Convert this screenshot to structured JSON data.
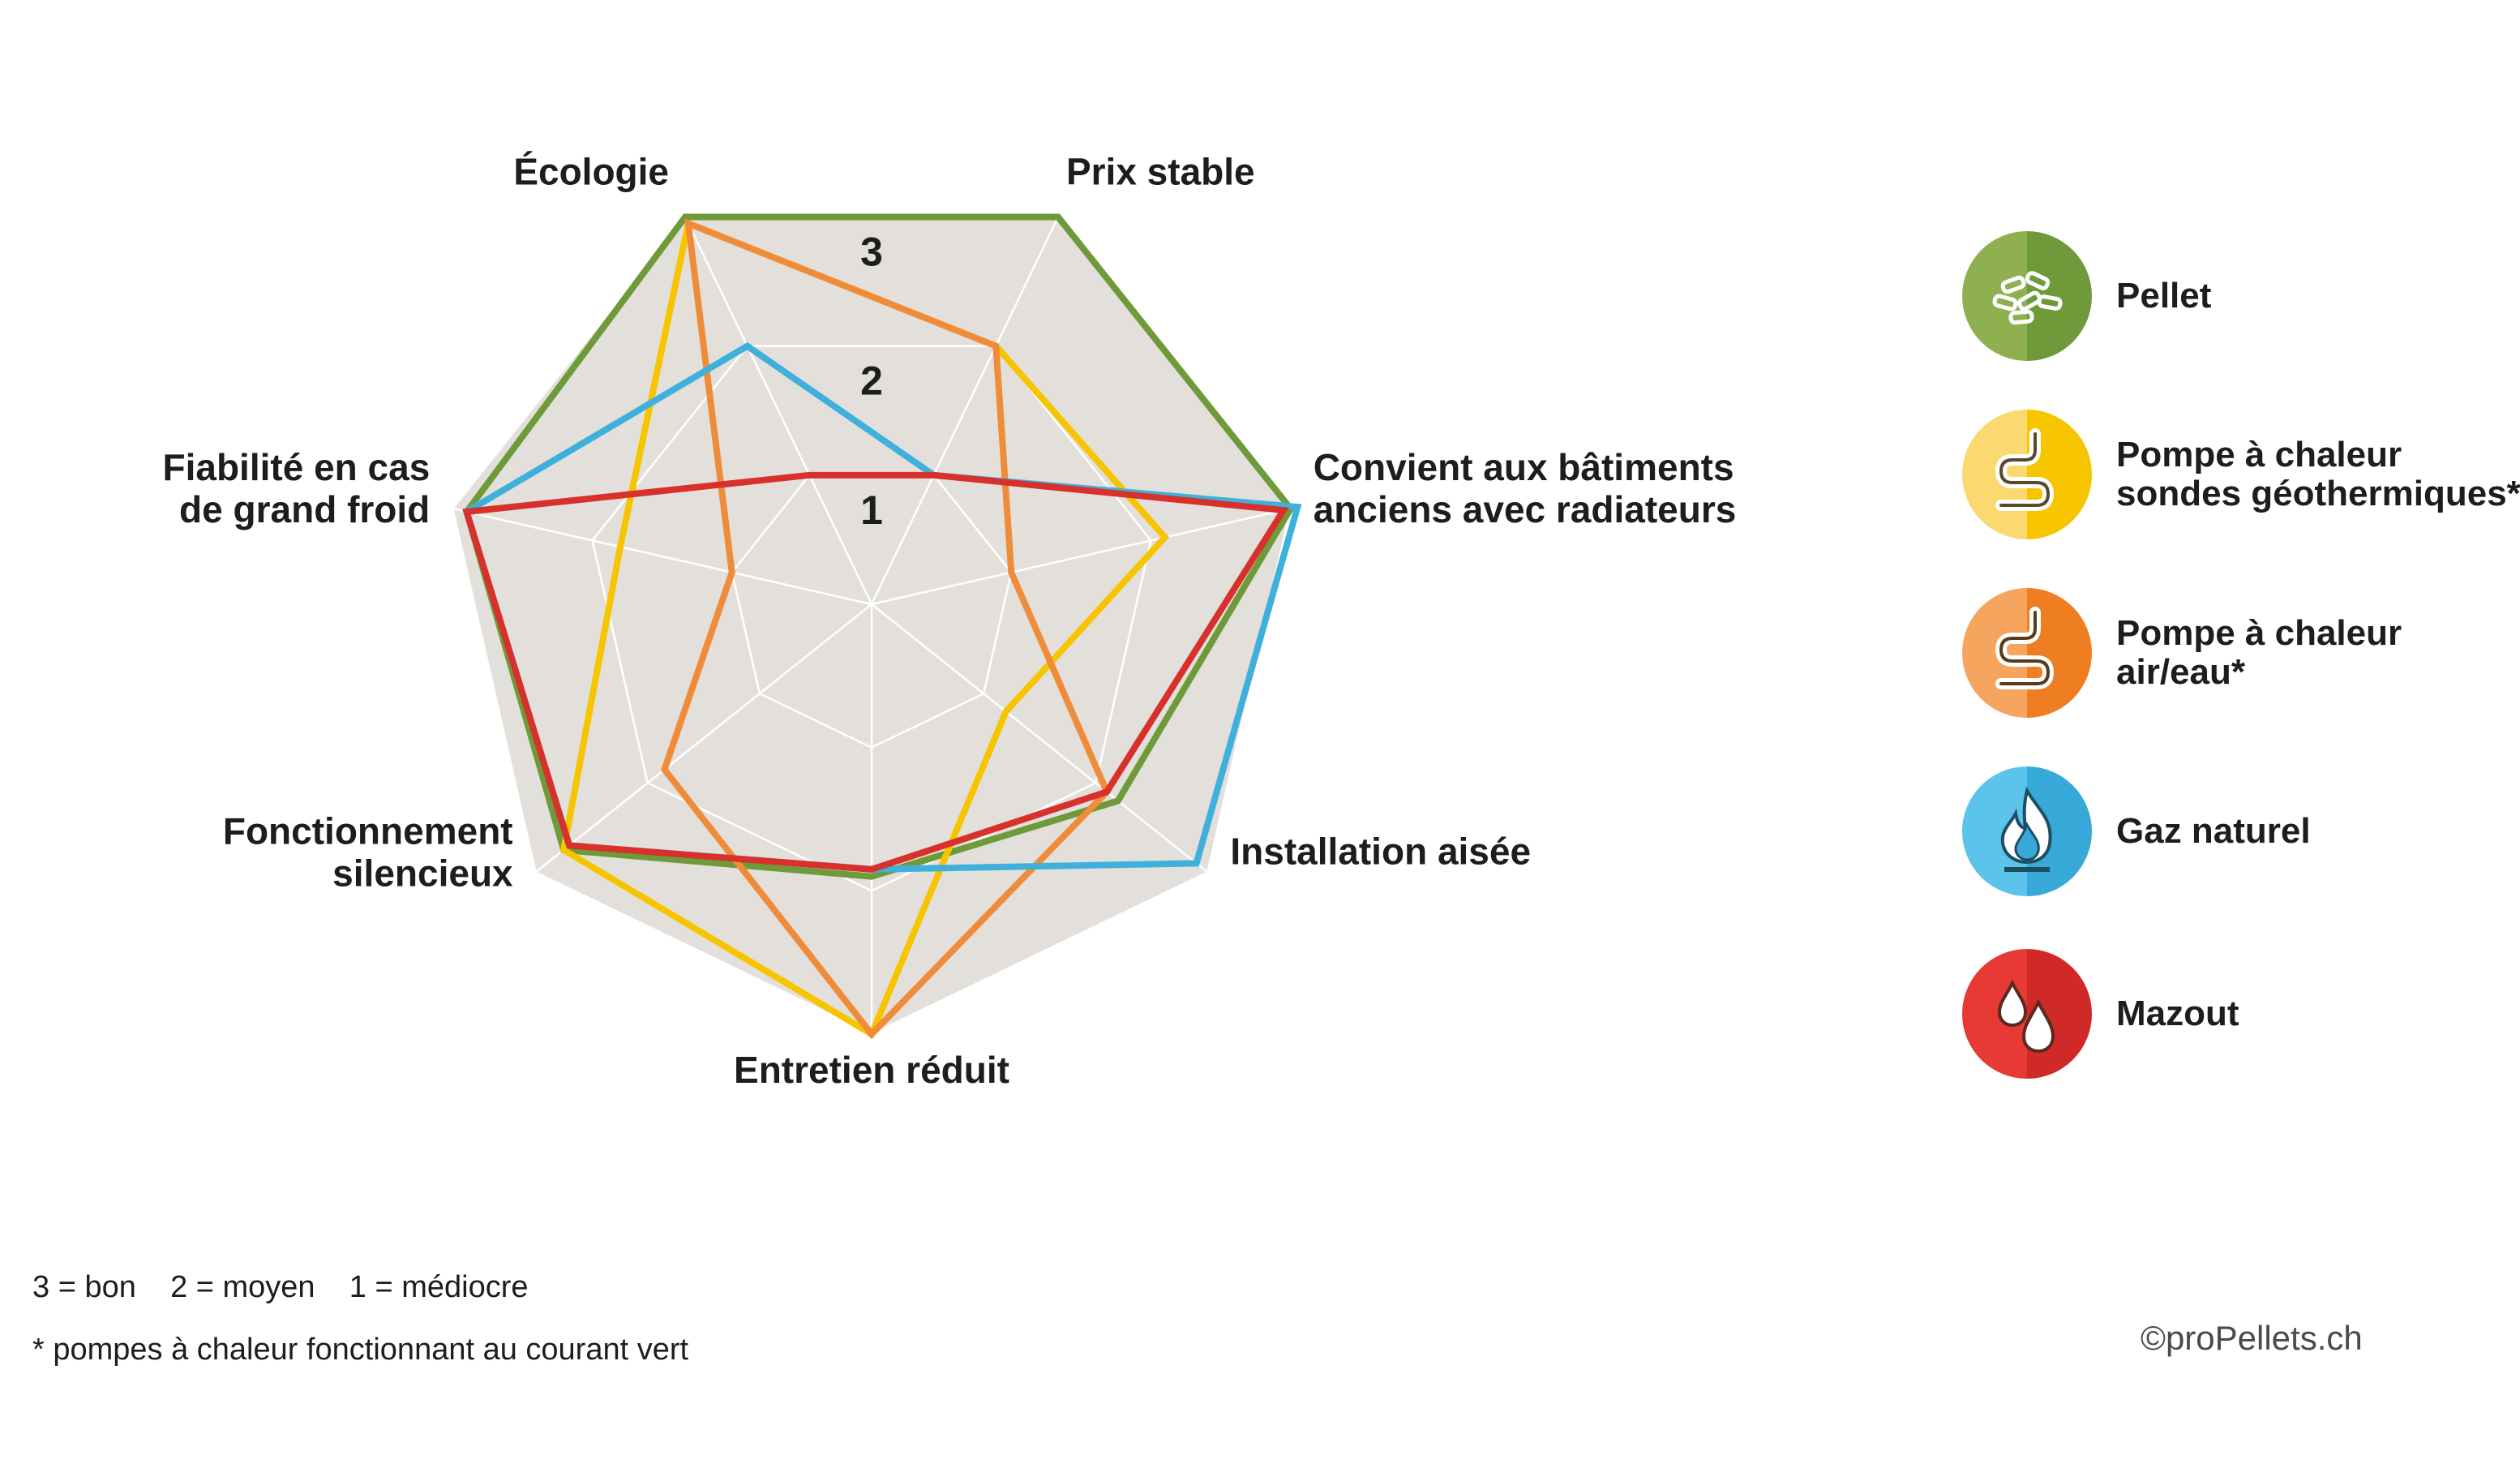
{
  "chart_data": {
    "type": "radar",
    "title": "",
    "axes": [
      "Écologie",
      "Prix stable",
      "Convient aux bâtiments\nanciens avec radiateurs",
      "Installation aisée",
      "Entretien réduit",
      "Fonctionnement\nsilencieux",
      "Fiabilité en cas\nde grand froid"
    ],
    "ring_labels": [
      "1",
      "2",
      "3"
    ],
    "range": [
      0,
      3
    ],
    "grid": true,
    "legend_position": "right",
    "series": [
      {
        "name": "Pellet",
        "color": "#6e9a3a",
        "values": [
          3,
          3,
          3,
          2.2,
          1.9,
          2.75,
          2.9
        ]
      },
      {
        "name": "Pompe à chaleur\nsondes géothermiques*",
        "color": "#f7c400",
        "values": [
          2.95,
          2,
          2.1,
          1.2,
          3,
          2.75,
          1.8
        ]
      },
      {
        "name": "Pompe à chaleur\nair/eau*",
        "color": "#ef8c3a",
        "values": [
          2.95,
          2,
          1.0,
          2.1,
          3,
          1.85,
          1.0
        ]
      },
      {
        "name": "Gaz naturel",
        "color": "#3fb0dc",
        "values": [
          2,
          1,
          3.05,
          2.9,
          1.85,
          2.7,
          2.9
        ]
      },
      {
        "name": "Mazout",
        "color": "#d8302b",
        "values": [
          1,
          1,
          2.95,
          2.1,
          1.85,
          2.7,
          2.9
        ]
      }
    ]
  },
  "legend": {
    "items": [
      {
        "label": "Pellet",
        "icon": "pellets-icon",
        "color_light": "#8fb050",
        "color_dark": "#6e9a3a"
      },
      {
        "label": "Pompe à chaleur\nsondes géothermiques*",
        "icon": "heat-pump-coil-icon",
        "color_light": "#fbd870",
        "color_dark": "#f7c400"
      },
      {
        "label": "Pompe à chaleur\nair/eau*",
        "icon": "heat-pump-coil-icon",
        "color_light": "#f5a55e",
        "color_dark": "#ef7d22"
      },
      {
        "label": "Gaz naturel",
        "icon": "flame-icon",
        "color_light": "#5cc3ea",
        "color_dark": "#36a9d8"
      },
      {
        "label": "Mazout",
        "icon": "oil-drops-icon",
        "color_light": "#e83a35",
        "color_dark": "#cf2a28"
      }
    ]
  },
  "footnotes": {
    "scale": "3 = bon    2 = moyen    1 = médiocre",
    "note": "* pompes à chaleur fonctionnant au courant vert"
  },
  "copyright": "©proPellets.ch",
  "colors": {
    "background_fill": "#e3e0dc",
    "grid": "#ffffff"
  }
}
